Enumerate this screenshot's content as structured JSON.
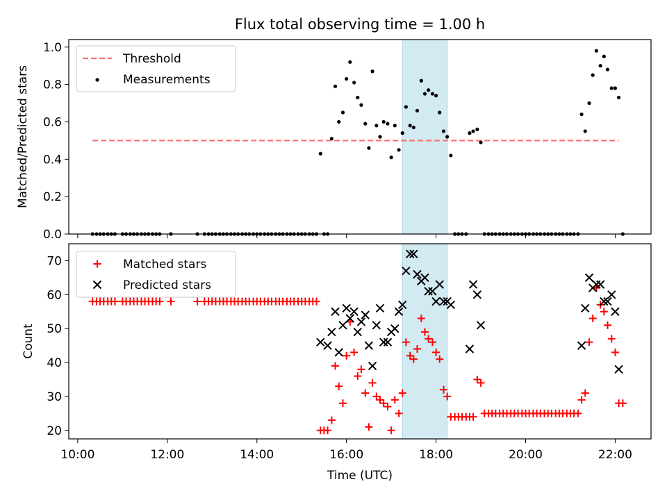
{
  "title": "Flux total observing time = 1.00 h",
  "colors": {
    "threshold": "#ff7070",
    "measurement": "#000000",
    "matched": "#ff0000",
    "predicted": "#000000",
    "window_fill": "#add8e6"
  },
  "shaded_window": {
    "start_h": 17.25,
    "end_h": 18.25
  },
  "chart_data": [
    {
      "type": "scatter",
      "name": "ratio-panel",
      "ylabel": "Matched/Predicted stars",
      "xlim": [
        9.8,
        22.8
      ],
      "ylim": [
        0,
        1.04
      ],
      "yticks": [
        0,
        0.2,
        0.4,
        0.6,
        0.8,
        1.0
      ],
      "yticklabels": [
        "0.0",
        "0.2",
        "0.4",
        "0.6",
        "0.8",
        "1.0"
      ],
      "legend_position": "top-left",
      "threshold": {
        "label": "Threshold",
        "value": 0.5,
        "x_range": [
          10.33,
          22.08
        ]
      },
      "measurements": {
        "label": "Measurements",
        "x": [
          10.33,
          10.42,
          10.5,
          10.58,
          10.67,
          10.75,
          10.83,
          11.0,
          11.08,
          11.17,
          11.25,
          11.33,
          11.42,
          11.5,
          11.58,
          11.67,
          11.75,
          11.83,
          12.08,
          12.67,
          12.83,
          12.92,
          13.0,
          13.08,
          13.17,
          13.25,
          13.33,
          13.42,
          13.5,
          13.58,
          13.67,
          13.75,
          13.83,
          13.92,
          14.0,
          14.08,
          14.17,
          14.25,
          14.33,
          14.42,
          14.5,
          14.58,
          14.67,
          14.75,
          14.83,
          14.92,
          15.0,
          15.08,
          15.17,
          15.25,
          15.33,
          15.42,
          15.5,
          15.58,
          15.67,
          15.75,
          15.83,
          15.92,
          16.0,
          16.08,
          16.17,
          16.25,
          16.33,
          16.42,
          16.5,
          16.58,
          16.67,
          16.75,
          16.83,
          16.92,
          17.0,
          17.08,
          17.17,
          17.25,
          17.33,
          17.42,
          17.5,
          17.58,
          17.67,
          17.75,
          17.83,
          17.92,
          18.0,
          18.08,
          18.17,
          18.25,
          18.33,
          18.42,
          18.5,
          18.58,
          18.67,
          18.75,
          18.83,
          18.92,
          19.0,
          19.08,
          19.17,
          19.25,
          19.33,
          19.42,
          19.5,
          19.58,
          19.67,
          19.75,
          19.83,
          19.92,
          20.0,
          20.08,
          20.17,
          20.25,
          20.33,
          20.42,
          20.5,
          20.58,
          20.67,
          20.75,
          20.83,
          20.92,
          21.0,
          21.08,
          21.17,
          21.25,
          21.33,
          21.42,
          21.5,
          21.58,
          21.67,
          21.75,
          21.83,
          21.92,
          22.0,
          22.08,
          22.17
        ],
        "y": [
          0,
          0,
          0,
          0,
          0,
          0,
          0,
          0,
          0,
          0,
          0,
          0,
          0,
          0,
          0,
          0,
          0,
          0,
          0,
          0,
          0,
          0,
          0,
          0,
          0,
          0,
          0,
          0,
          0,
          0,
          0,
          0,
          0,
          0,
          0,
          0,
          0,
          0,
          0,
          0,
          0,
          0,
          0,
          0,
          0,
          0,
          0,
          0,
          0,
          0,
          0,
          0.43,
          0,
          0,
          0.51,
          0.79,
          0.6,
          0.65,
          0.83,
          0.92,
          0.81,
          0.73,
          0.69,
          0.59,
          0.46,
          0.87,
          0.58,
          0.52,
          0.6,
          0.59,
          0.41,
          0.58,
          0.45,
          0.54,
          0.68,
          0.58,
          0.57,
          0.66,
          0.82,
          0.75,
          0.77,
          0.75,
          0.74,
          0.65,
          0.55,
          0.52,
          0.42,
          0,
          0,
          0,
          0,
          0.54,
          0.55,
          0.56,
          0.49,
          0,
          0,
          0,
          0,
          0,
          0,
          0,
          0,
          0,
          0,
          0,
          0,
          0,
          0,
          0,
          0,
          0,
          0,
          0,
          0,
          0,
          0,
          0,
          0,
          0,
          0,
          0.64,
          0.55,
          0.7,
          0.85,
          0.98,
          0.9,
          0.95,
          0.88,
          0.78,
          0.78,
          0.73,
          0
        ]
      }
    },
    {
      "type": "scatter",
      "name": "count-panel",
      "ylabel": "Count",
      "xlabel": "Time (UTC)",
      "xlim": [
        9.8,
        22.8
      ],
      "ylim": [
        17.5,
        75
      ],
      "yticks": [
        20,
        30,
        40,
        50,
        60,
        70
      ],
      "yticklabels": [
        "20",
        "30",
        "40",
        "50",
        "60",
        "70"
      ],
      "xticks": [
        10,
        12,
        14,
        16,
        18,
        20,
        22
      ],
      "xticklabels": [
        "10:00",
        "12:00",
        "14:00",
        "16:00",
        "18:00",
        "20:00",
        "22:00"
      ],
      "legend_position": "top-left",
      "series": [
        {
          "name": "Matched stars",
          "marker": "plus",
          "x": [
            10.33,
            10.42,
            10.5,
            10.58,
            10.67,
            10.75,
            10.83,
            11.0,
            11.08,
            11.17,
            11.25,
            11.33,
            11.42,
            11.5,
            11.58,
            11.67,
            11.75,
            11.83,
            12.08,
            12.67,
            12.83,
            12.92,
            13.0,
            13.08,
            13.17,
            13.25,
            13.33,
            13.42,
            13.5,
            13.58,
            13.67,
            13.75,
            13.83,
            13.92,
            14.0,
            14.08,
            14.17,
            14.25,
            14.33,
            14.42,
            14.5,
            14.58,
            14.67,
            14.75,
            14.83,
            14.92,
            15.0,
            15.08,
            15.17,
            15.25,
            15.33,
            15.42,
            15.5,
            15.58,
            15.67,
            15.75,
            15.83,
            15.92,
            16.0,
            16.08,
            16.17,
            16.25,
            16.33,
            16.42,
            16.5,
            16.58,
            16.67,
            16.75,
            16.83,
            16.92,
            17.0,
            17.08,
            17.17,
            17.25,
            17.33,
            17.42,
            17.5,
            17.58,
            17.67,
            17.75,
            17.83,
            17.92,
            18.0,
            18.08,
            18.17,
            18.25,
            18.33,
            18.42,
            18.5,
            18.58,
            18.67,
            18.75,
            18.83,
            18.92,
            19.0,
            19.08,
            19.17,
            19.25,
            19.33,
            19.42,
            19.5,
            19.58,
            19.67,
            19.75,
            19.83,
            19.92,
            20.0,
            20.08,
            20.17,
            20.25,
            20.33,
            20.42,
            20.5,
            20.58,
            20.67,
            20.75,
            20.83,
            20.92,
            21.0,
            21.08,
            21.17,
            21.25,
            21.33,
            21.42,
            21.5,
            21.58,
            21.67,
            21.75,
            21.83,
            21.92,
            22.0,
            22.08,
            22.17
          ],
          "y": [
            58,
            58,
            58,
            58,
            58,
            58,
            58,
            58,
            58,
            58,
            58,
            58,
            58,
            58,
            58,
            58,
            58,
            58,
            58,
            58,
            58,
            58,
            58,
            58,
            58,
            58,
            58,
            58,
            58,
            58,
            58,
            58,
            58,
            58,
            58,
            58,
            58,
            58,
            58,
            58,
            58,
            58,
            58,
            58,
            58,
            58,
            58,
            58,
            58,
            58,
            58,
            20,
            20,
            20,
            23,
            39,
            33,
            28,
            42,
            52,
            43,
            36,
            38,
            31,
            21,
            34,
            30,
            29,
            28,
            27,
            20,
            29,
            25,
            31,
            46,
            42,
            41,
            44,
            53,
            49,
            47,
            46,
            43,
            41,
            32,
            30,
            24,
            24,
            24,
            24,
            24,
            24,
            24,
            35,
            34,
            25,
            25,
            25,
            25,
            25,
            25,
            25,
            25,
            25,
            25,
            25,
            25,
            25,
            25,
            25,
            25,
            25,
            25,
            25,
            25,
            25,
            25,
            25,
            25,
            25,
            25,
            29,
            31,
            46,
            53,
            62,
            57,
            55,
            51,
            47,
            43,
            28,
            28
          ]
        },
        {
          "name": "Predicted stars",
          "marker": "x",
          "x": [
            15.42,
            15.58,
            15.67,
            15.75,
            15.83,
            15.92,
            16.0,
            16.08,
            16.17,
            16.25,
            16.33,
            16.42,
            16.5,
            16.58,
            16.67,
            16.75,
            16.83,
            16.92,
            17.0,
            17.08,
            17.17,
            17.25,
            17.33,
            17.42,
            17.5,
            17.58,
            17.67,
            17.75,
            17.83,
            17.92,
            18.0,
            18.08,
            18.17,
            18.25,
            18.33,
            18.75,
            18.83,
            18.92,
            19.0,
            21.25,
            21.33,
            21.42,
            21.5,
            21.58,
            21.67,
            21.75,
            21.83,
            21.92,
            22.0,
            22.08
          ],
          "y": [
            46,
            45,
            49,
            55,
            43,
            51,
            56,
            53,
            55,
            49,
            52,
            54,
            45,
            39,
            51,
            56,
            46,
            46,
            49,
            50,
            55,
            57,
            67,
            72,
            72,
            66,
            64,
            65,
            61,
            61,
            58,
            63,
            58,
            58,
            57,
            44,
            63,
            60,
            51,
            45,
            56,
            65,
            62,
            63,
            63,
            58,
            58,
            60,
            55,
            38
          ]
        }
      ]
    }
  ]
}
